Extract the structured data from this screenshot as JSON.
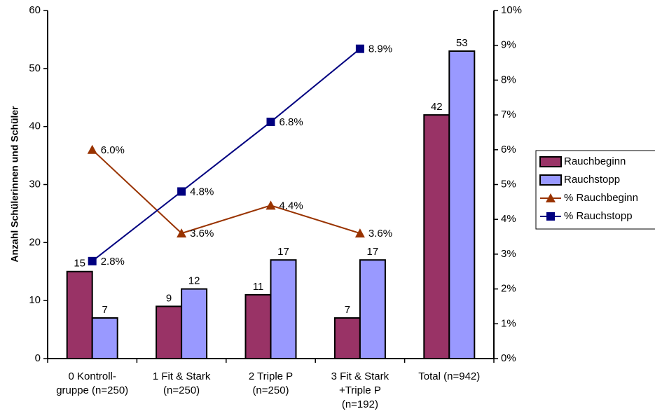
{
  "chart_data": {
    "type": "bar",
    "y_label": "Anzahl Schülerinnen und Schüler",
    "categories": [
      "0  Kontroll-\ngruppe (n=250)",
      "1  Fit & Stark\n(n=250)",
      "2  Triple P\n(n=250)",
      "3  Fit & Stark\n+Triple P\n(n=192)",
      "Total (n=942)"
    ],
    "series": [
      {
        "name": "Rauchbeginn",
        "type": "bar",
        "color": "#993366",
        "values": [
          15,
          9,
          11,
          7,
          42
        ]
      },
      {
        "name": "Rauchstopp",
        "type": "bar",
        "color": "#9999ff",
        "values": [
          7,
          12,
          17,
          17,
          53
        ]
      },
      {
        "name": "% Rauchbeginn",
        "type": "line",
        "marker": "triangle",
        "axis": "y2",
        "color": "#993300",
        "values": [
          6.0,
          3.6,
          4.4,
          3.6,
          null
        ],
        "value_labels": [
          "6.0%",
          "3.6%",
          "4.4%",
          "3.6%",
          null
        ]
      },
      {
        "name": "% Rauchstopp",
        "type": "line",
        "marker": "square",
        "axis": "y2",
        "color": "#000080",
        "values": [
          2.8,
          4.8,
          6.8,
          8.9,
          null
        ],
        "value_labels": [
          "2.8%",
          "4.8%",
          "6.8%",
          "8.9%",
          null
        ]
      }
    ],
    "ylim": [
      0,
      60
    ],
    "yticks": [
      0,
      10,
      20,
      30,
      40,
      50,
      60
    ],
    "y2lim": [
      0,
      10
    ],
    "y2ticks": [
      {
        "value": 0,
        "label": "0%"
      },
      {
        "value": 1,
        "label": "1%"
      },
      {
        "value": 2,
        "label": "2%"
      },
      {
        "value": 3,
        "label": "3%"
      },
      {
        "value": 4,
        "label": "4%"
      },
      {
        "value": 5,
        "label": "5%"
      },
      {
        "value": 6,
        "label": "6%"
      },
      {
        "value": 7,
        "label": "7%"
      },
      {
        "value": 8,
        "label": "8%"
      },
      {
        "value": 9,
        "label": "9%"
      },
      {
        "value": 10,
        "label": "10%"
      }
    ],
    "grid": false,
    "legend": "right"
  }
}
